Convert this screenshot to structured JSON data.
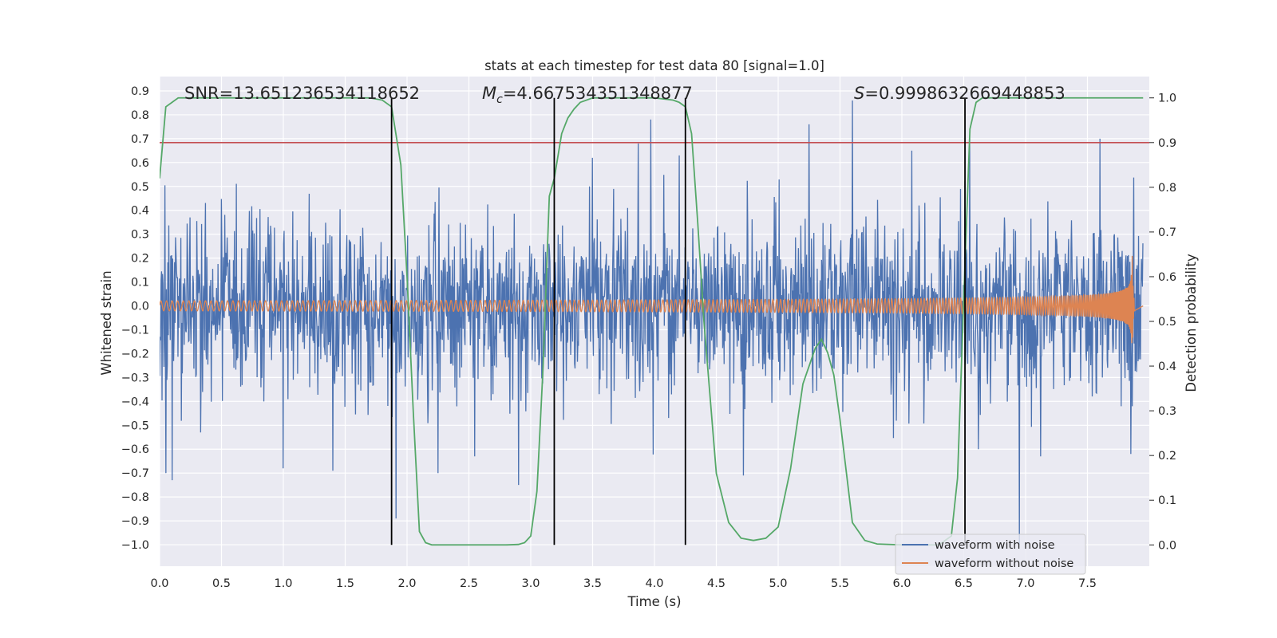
{
  "chart_data": {
    "type": "line",
    "title": "stats at each timestep for test data 80 [signal=1.0]",
    "xlabel": "Time (s)",
    "ylabel_left": "Whitened strain",
    "ylabel_right": "Detection probability",
    "xlim": [
      0.0,
      8.0
    ],
    "ylim_left": [
      -1.09,
      0.96
    ],
    "ylim_right": [
      -0.0477,
      1.0477
    ],
    "xticks": [
      "0.0",
      "0.5",
      "1.0",
      "1.5",
      "2.0",
      "2.5",
      "3.0",
      "3.5",
      "4.0",
      "4.5",
      "5.0",
      "5.5",
      "6.0",
      "6.5",
      "7.0",
      "7.5"
    ],
    "yticks_left": [
      "0.9",
      "0.8",
      "0.7",
      "0.6",
      "0.5",
      "0.4",
      "0.3",
      "0.2",
      "0.1",
      "0.0",
      "−0.1",
      "−0.2",
      "−0.3",
      "−0.4",
      "−0.5",
      "−0.6",
      "−0.7",
      "−0.8",
      "−0.9",
      "−1.0"
    ],
    "yticks_right": [
      "1.0",
      "0.9",
      "0.8",
      "0.7",
      "0.6",
      "0.5",
      "0.4",
      "0.3",
      "0.2",
      "0.1",
      "0.0"
    ],
    "grid": true,
    "legend_location": "lower right",
    "annotations": {
      "snr": "SNR=13.651236534118652",
      "mc_symbol": "M",
      "mc_sub": "c",
      "mc_value": "=4.667534351348877",
      "s_symbol": "S",
      "s_value": "=0.9998632669448853"
    },
    "threshold": {
      "axis": "right",
      "value": 0.9,
      "color": "#c44e52"
    },
    "vertical_lines": [
      1.875,
      3.19,
      4.25,
      6.51
    ],
    "series": [
      {
        "name": "waveform with noise",
        "axis": "left",
        "color": "#4c72b0",
        "dt": 0.0039,
        "envelope_typical": 0.38,
        "peaks": [
          {
            "x": 0.05,
            "y": -0.7
          },
          {
            "x": 0.1,
            "y": -0.73
          },
          {
            "x": 0.33,
            "y": -0.53
          },
          {
            "x": 1.0,
            "y": -0.68
          },
          {
            "x": 1.4,
            "y": -0.69
          },
          {
            "x": 1.91,
            "y": -0.89
          },
          {
            "x": 2.25,
            "y": -0.7
          },
          {
            "x": 2.9,
            "y": -0.75
          },
          {
            "x": 3.5,
            "y": 0.62
          },
          {
            "x": 3.87,
            "y": 0.68
          },
          {
            "x": 3.97,
            "y": 0.78
          },
          {
            "x": 4.2,
            "y": 0.63
          },
          {
            "x": 4.72,
            "y": -0.71
          },
          {
            "x": 5.25,
            "y": 0.76
          },
          {
            "x": 5.6,
            "y": 0.86
          },
          {
            "x": 6.08,
            "y": 0.65
          },
          {
            "x": 6.55,
            "y": 0.7
          },
          {
            "x": 6.62,
            "y": -0.6
          },
          {
            "x": 6.95,
            "y": -1.0
          },
          {
            "x": 7.12,
            "y": -0.63
          },
          {
            "x": 7.6,
            "y": 0.7
          },
          {
            "x": 7.85,
            "y": -0.62
          }
        ]
      },
      {
        "name": "waveform without noise",
        "axis": "left",
        "color": "#dd8452",
        "start_amplitude": 0.021,
        "peak_time": 7.86,
        "peak_amplitude": 0.26,
        "ringdown_end": 7.88,
        "start_frequency": 22,
        "end_frequency": 140
      },
      {
        "name": "detection probability",
        "axis": "right",
        "color": "#55a868",
        "x": [
          0.0,
          0.05,
          0.1,
          0.15,
          0.2,
          0.3,
          0.5,
          1.0,
          1.5,
          1.7,
          1.8,
          1.875,
          1.95,
          2.0,
          2.05,
          2.1,
          2.15,
          2.2,
          2.5,
          2.8,
          2.9,
          2.95,
          3.0,
          3.05,
          3.1,
          3.15,
          3.19,
          3.25,
          3.3,
          3.35,
          3.4,
          3.5,
          3.6,
          3.75,
          4.0,
          4.15,
          4.2,
          4.25,
          4.3,
          4.35,
          4.4,
          4.5,
          4.6,
          4.7,
          4.8,
          4.9,
          5.0,
          5.1,
          5.2,
          5.3,
          5.35,
          5.4,
          5.45,
          5.5,
          5.6,
          5.7,
          5.8,
          6.0,
          6.3,
          6.4,
          6.45,
          6.5,
          6.55,
          6.6,
          6.65,
          6.7,
          7.0,
          7.5,
          7.95
        ],
        "y": [
          0.82,
          0.98,
          0.99,
          1.0,
          1.0,
          1.0,
          1.0,
          1.0,
          1.0,
          1.0,
          0.995,
          0.98,
          0.85,
          0.6,
          0.3,
          0.03,
          0.005,
          0.0,
          0.0,
          0.0,
          0.001,
          0.005,
          0.02,
          0.12,
          0.4,
          0.78,
          0.82,
          0.92,
          0.955,
          0.975,
          0.99,
          1.0,
          1.0,
          1.0,
          1.0,
          0.995,
          0.99,
          0.98,
          0.92,
          0.72,
          0.5,
          0.16,
          0.05,
          0.015,
          0.01,
          0.015,
          0.04,
          0.17,
          0.36,
          0.44,
          0.46,
          0.43,
          0.38,
          0.28,
          0.05,
          0.01,
          0.002,
          0.0,
          0.0,
          0.02,
          0.15,
          0.55,
          0.93,
          0.99,
          1.0,
          1.0,
          1.0,
          1.0,
          1.0
        ]
      }
    ]
  }
}
